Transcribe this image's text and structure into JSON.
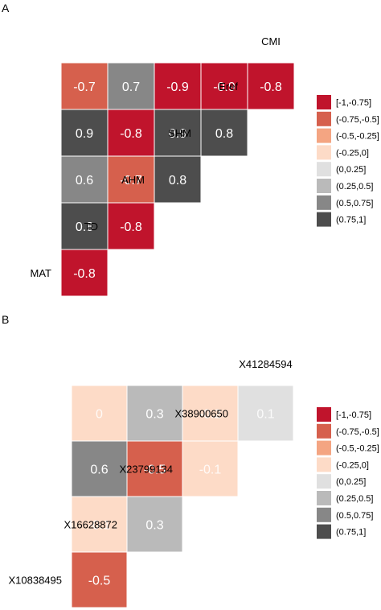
{
  "chart_data": [
    {
      "panel": "A",
      "type": "heatmap",
      "variables": [
        "MAT",
        "TD",
        "AHM",
        "SHM",
        "Eref",
        "CMI"
      ],
      "cells": [
        {
          "row": "TD",
          "col": "MAT",
          "value": -0.8
        },
        {
          "row": "AHM",
          "col": "MAT",
          "value": 0.8
        },
        {
          "row": "AHM",
          "col": "TD",
          "value": -0.8
        },
        {
          "row": "SHM",
          "col": "MAT",
          "value": 0.6
        },
        {
          "row": "SHM",
          "col": "TD",
          "value": -0.7
        },
        {
          "row": "SHM",
          "col": "AHM",
          "value": 0.8
        },
        {
          "row": "Eref",
          "col": "MAT",
          "value": 0.9
        },
        {
          "row": "Eref",
          "col": "TD",
          "value": -0.8
        },
        {
          "row": "Eref",
          "col": "AHM",
          "value": 0.9
        },
        {
          "row": "Eref",
          "col": "SHM",
          "value": 0.8
        },
        {
          "row": "CMI",
          "col": "MAT",
          "value": -0.7
        },
        {
          "row": "CMI",
          "col": "TD",
          "value": 0.7
        },
        {
          "row": "CMI",
          "col": "AHM",
          "value": -0.9
        },
        {
          "row": "CMI",
          "col": "SHM",
          "value": -0.9
        },
        {
          "row": "CMI",
          "col": "Eref",
          "value": -0.8
        }
      ],
      "legend": [
        {
          "label": "[-1,-0.75]",
          "color": "#c0142c"
        },
        {
          "label": "(-0.75,-0.5]",
          "color": "#d6604d"
        },
        {
          "label": "(-0.5,-0.25]",
          "color": "#f4a582"
        },
        {
          "label": "(-0.25,0]",
          "color": "#fddbc7"
        },
        {
          "label": "(0,0.25]",
          "color": "#e0e0e0"
        },
        {
          "label": "(0.25,0.5]",
          "color": "#bababa"
        },
        {
          "label": "(0.5,0.75]",
          "color": "#878787"
        },
        {
          "label": "(0.75,1]",
          "color": "#4d4d4d"
        }
      ]
    },
    {
      "panel": "B",
      "type": "heatmap",
      "variables": [
        "X10838495",
        "X16628872",
        "X23799134",
        "X38900650",
        "X41284594"
      ],
      "cells": [
        {
          "row": "X16628872",
          "col": "X10838495",
          "value": -0.5
        },
        {
          "row": "X23799134",
          "col": "X10838495",
          "value": -0.1
        },
        {
          "row": "X23799134",
          "col": "X16628872",
          "value": 0.3
        },
        {
          "row": "X38900650",
          "col": "X10838495",
          "value": 0.6
        },
        {
          "row": "X38900650",
          "col": "X16628872",
          "value": -0.5
        },
        {
          "row": "X38900650",
          "col": "X23799134",
          "value": -0.1
        },
        {
          "row": "X41284594",
          "col": "X10838495",
          "value": 0
        },
        {
          "row": "X41284594",
          "col": "X16628872",
          "value": 0.3
        },
        {
          "row": "X41284594",
          "col": "X23799134",
          "value": -0.2
        },
        {
          "row": "X41284594",
          "col": "X38900650",
          "value": 0.1
        }
      ],
      "legend": [
        {
          "label": "[-1,-0.75]",
          "color": "#c0142c"
        },
        {
          "label": "(-0.75,-0.5]",
          "color": "#d6604d"
        },
        {
          "label": "(-0.5,-0.25]",
          "color": "#f4a582"
        },
        {
          "label": "(-0.25,0]",
          "color": "#fddbc7"
        },
        {
          "label": "(0,0.25]",
          "color": "#e0e0e0"
        },
        {
          "label": "(0.25,0.5]",
          "color": "#bababa"
        },
        {
          "label": "(0.5,0.75]",
          "color": "#878787"
        },
        {
          "label": "(0.75,1]",
          "color": "#4d4d4d"
        }
      ]
    }
  ]
}
